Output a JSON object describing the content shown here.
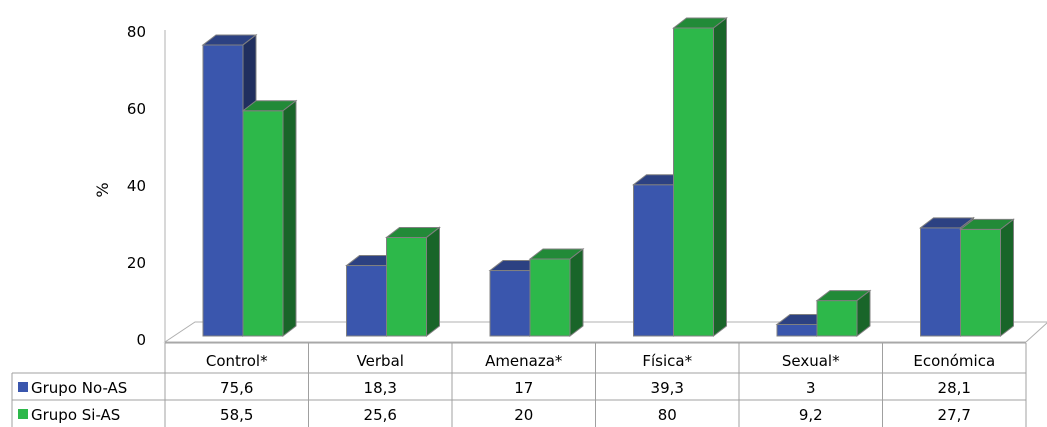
{
  "chart_data": {
    "type": "bar",
    "ylabel": "%",
    "ylim": [
      0,
      80
    ],
    "yticks": [
      "0",
      "20",
      "40",
      "60",
      "80"
    ],
    "categories": [
      "Control*",
      "Verbal",
      "Amenaza*",
      "Física*",
      "Sexual*",
      "Económica"
    ],
    "series": [
      {
        "name": "Grupo No-AS",
        "color": "#3a56ad",
        "display": [
          "75,6",
          "18,3",
          "17",
          "39,3",
          "3",
          "28,1"
        ],
        "values": [
          75.6,
          18.3,
          17,
          39.3,
          3,
          28.1
        ]
      },
      {
        "name": "Grupo Si-AS",
        "color": "#2db84a",
        "display": [
          "58,5",
          "25,6",
          "20",
          "80",
          "9,2",
          "27,7"
        ],
        "values": [
          58.5,
          25.6,
          20,
          80,
          9.2,
          27.7
        ]
      }
    ],
    "grid": false,
    "legend": "data table rows",
    "style": "3d-clustered"
  }
}
